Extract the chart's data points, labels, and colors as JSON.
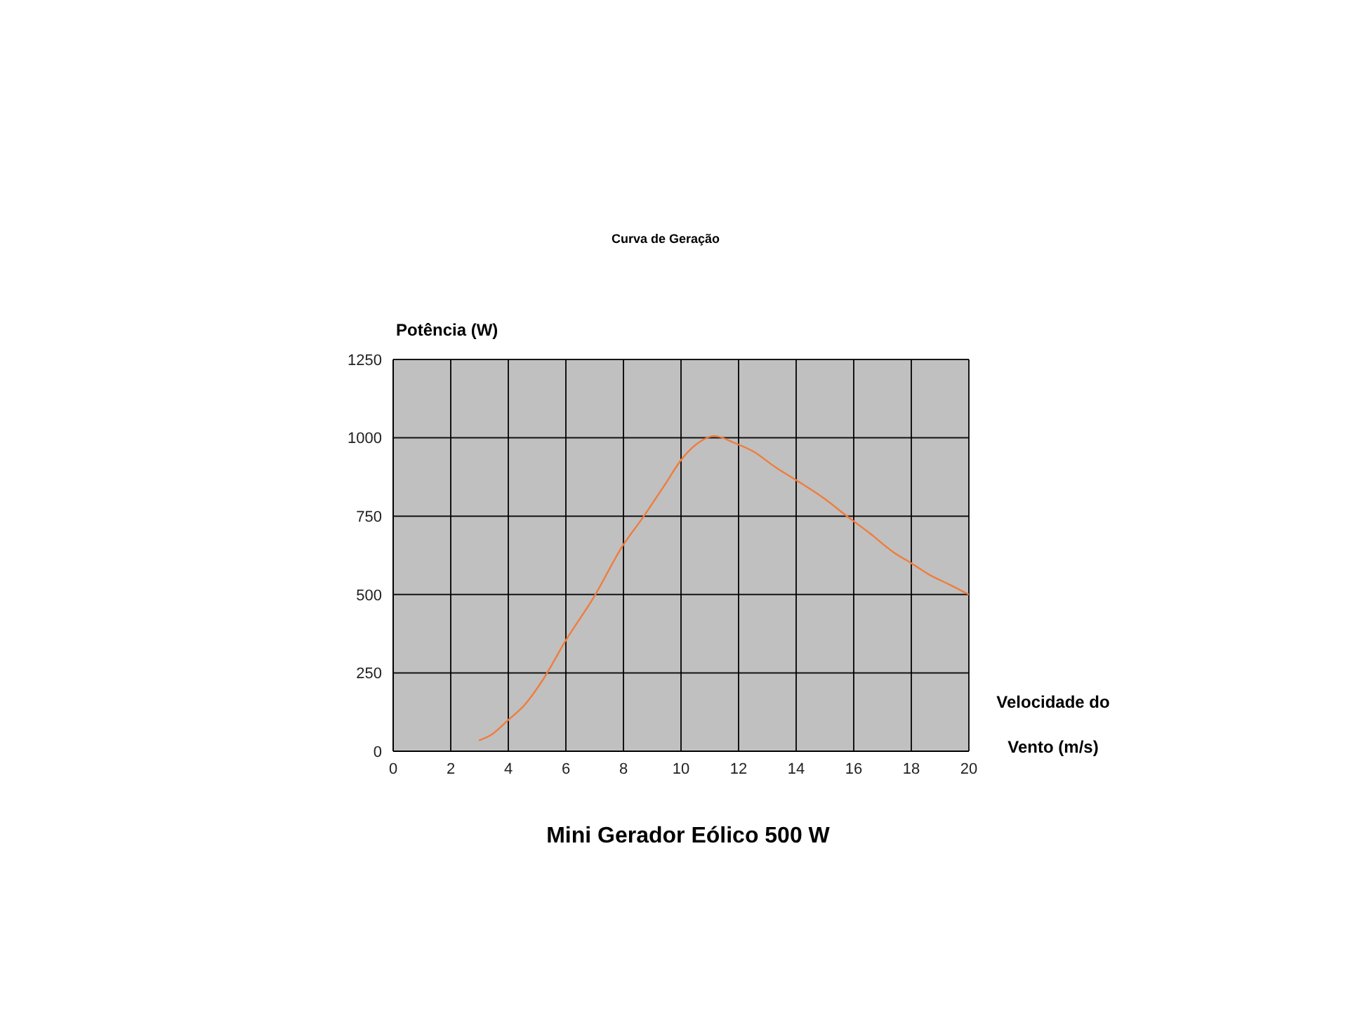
{
  "chart_data": {
    "type": "line",
    "title": "Curva de Geração",
    "xlabel": "Velocidade do Vento (m/s)",
    "ylabel": "Potência (W)",
    "annotations": [
      "Mini Gerador Eólico 500 W"
    ],
    "x": [
      3,
      3.4,
      4,
      4.55,
      5.2,
      6,
      7,
      7.95,
      8.7,
      9.4,
      10.05,
      10.7,
      11.15,
      11.85,
      12.5,
      13.3,
      14,
      14.95,
      15.75,
      16.55,
      17.35,
      18,
      18.65,
      19.3,
      20
    ],
    "series": [
      {
        "color": "#f07c3c",
        "values": [
          35,
          52,
          100,
          146,
          228,
          354,
          496,
          652,
          749,
          845,
          935,
          990,
          1006,
          984,
          957,
          905,
          865,
          808,
          751,
          696,
          637,
          600,
          562,
          533,
          500
        ]
      }
    ],
    "xlim": [
      0,
      20
    ],
    "ylim": [
      0,
      1250
    ],
    "xticks": [
      0,
      2,
      4,
      6,
      8,
      10,
      12,
      14,
      16,
      18,
      20
    ],
    "yticks": [
      0,
      250,
      500,
      750,
      1000,
      1250
    ],
    "grid": true,
    "marker": "none",
    "line_style": "solid"
  }
}
